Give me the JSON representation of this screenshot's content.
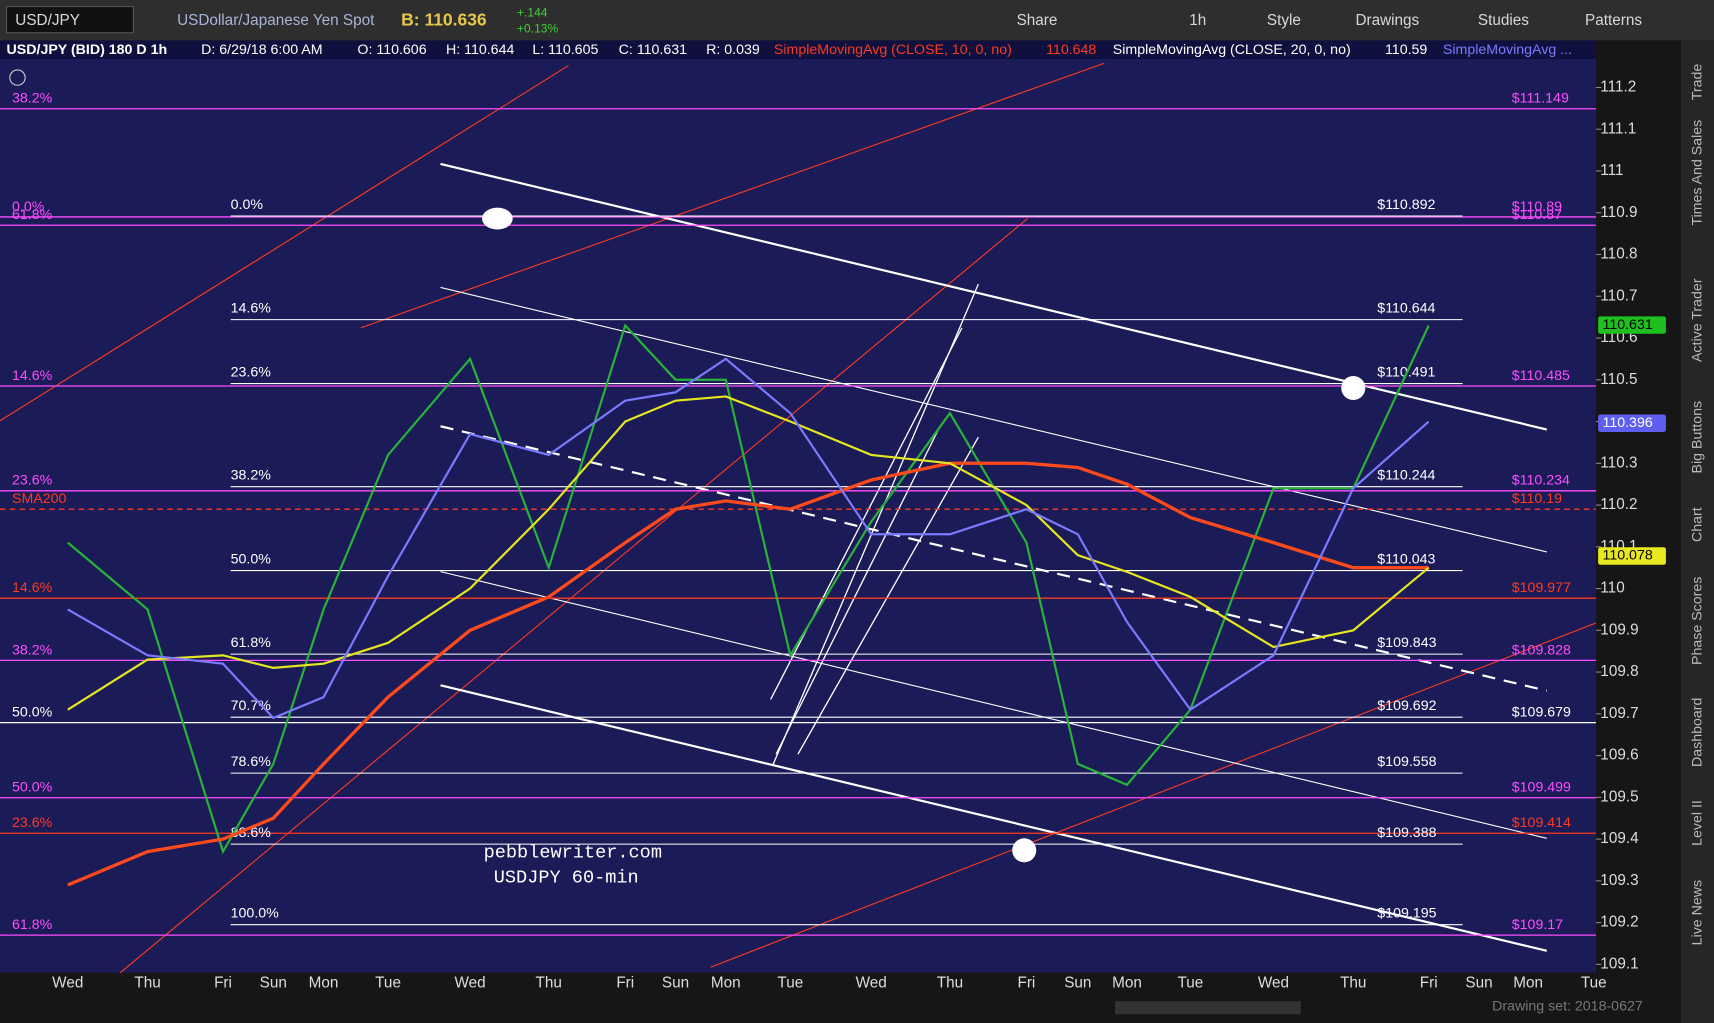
{
  "toolbar": {
    "symbol": "USD/JPY",
    "description": "USDollar/Japanese Yen Spot",
    "bid": "B: 110.636",
    "change": "+.144",
    "change_pct": "+0.13%",
    "buttons": [
      "Share",
      "1h",
      "Style",
      "Drawings",
      "Studies",
      "Patterns"
    ]
  },
  "header": {
    "study_title": "USD/JPY (BID) 180 D 1h",
    "date": "D: 6/29/18 6:00 AM",
    "open": "O: 110.606",
    "high": "H: 110.644",
    "low": "L: 110.605",
    "close": "C: 110.631",
    "range": "R: 0.039",
    "sma10": "SimpleMovingAvg (CLOSE, 10, 0, no)",
    "sma10_value": "110.648",
    "sma20": "SimpleMovingAvg (CLOSE, 20, 0, no)",
    "sma20_value": "110.59",
    "sma_more": "SimpleMovingAvg ..."
  },
  "side_tabs": [
    "Trade",
    "Times And Sales",
    "Active Trader",
    "Big Buttons",
    "Chart",
    "Phase Scores",
    "Dashboard",
    "Level II",
    "Live News"
  ],
  "chart_data": {
    "type": "line",
    "categories": [
      "Wed",
      "Thu",
      "Fri",
      "Sun",
      "Mon",
      "Tue",
      "Wed",
      "Thu",
      "Fri",
      "Sun",
      "Mon",
      "Tue",
      "Wed",
      "Thu",
      "Fri",
      "Sun",
      "Mon",
      "Tue",
      "Wed",
      "Thu",
      "Fri",
      "Sun",
      "Mon",
      "Tue"
    ],
    "series": [
      {
        "color": "#27b33a",
        "values": [
          110.11,
          109.95,
          109.37,
          109.58,
          109.95,
          110.32,
          110.55,
          110.05,
          110.63,
          110.5,
          110.5,
          109.84,
          110.16,
          110.42,
          110.11,
          109.58,
          109.53,
          109.71,
          110.24,
          110.24,
          110.63,
          null,
          null,
          null
        ]
      },
      {
        "color": "#ff4a1c",
        "values": [
          109.29,
          109.37,
          109.4,
          109.45,
          109.58,
          109.74,
          109.9,
          109.98,
          110.11,
          110.19,
          110.21,
          110.19,
          110.26,
          110.3,
          110.3,
          110.29,
          110.25,
          110.17,
          110.11,
          110.05,
          110.05,
          null,
          null,
          null
        ]
      },
      {
        "color": "#e6e620",
        "values": [
          109.71,
          109.83,
          109.84,
          109.81,
          109.82,
          109.87,
          110.0,
          110.19,
          110.4,
          110.45,
          110.46,
          110.4,
          110.32,
          110.3,
          110.2,
          110.08,
          110.04,
          109.98,
          109.86,
          109.9,
          110.05,
          null,
          null,
          null
        ]
      },
      {
        "color": "#7a7aff",
        "values": [
          109.95,
          109.84,
          109.82,
          109.69,
          109.74,
          110.03,
          110.37,
          110.32,
          110.45,
          110.47,
          110.55,
          110.42,
          110.13,
          110.13,
          110.19,
          110.13,
          109.92,
          109.71,
          109.84,
          110.24,
          110.4,
          null,
          null,
          null
        ]
      }
    ],
    "ylim": [
      109.08,
      111.31
    ],
    "yticks": [
      109.1,
      109.2,
      109.3,
      109.4,
      109.5,
      109.6,
      109.7,
      109.8,
      109.9,
      110,
      110.1,
      110.2,
      110.3,
      110.4,
      110.5,
      110.6,
      110.7,
      110.8,
      110.9,
      111,
      111.1,
      111.2
    ],
    "fib_levels": [
      {
        "label": "0.0%",
        "value": 110.892,
        "price_label": "$110.892"
      },
      {
        "label": "14.6%",
        "value": 110.644,
        "price_label": "$110.644"
      },
      {
        "label": "23.6%",
        "value": 110.491,
        "price_label": "$110.491"
      },
      {
        "label": "38.2%",
        "value": 110.244,
        "price_label": "$110.244"
      },
      {
        "label": "50.0%",
        "value": 110.043,
        "price_label": "$110.043"
      },
      {
        "label": "61.8%",
        "value": 109.843,
        "price_label": "$109.843"
      },
      {
        "label": "70.7%",
        "value": 109.692,
        "price_label": "$109.692"
      },
      {
        "label": "78.6%",
        "value": 109.558,
        "price_label": "$109.558"
      },
      {
        "label": "88.6%",
        "value": 109.388,
        "price_label": "$109.388"
      },
      {
        "label": "100.0%",
        "value": 109.195,
        "price_label": "$109.195"
      }
    ],
    "levels": [
      {
        "label": "38.2%",
        "value": 111.149,
        "price_label": "$111.149",
        "color": "#ff4dff"
      },
      {
        "label": "0.0%",
        "value": 110.89,
        "price_label": "$110.89",
        "color": "#ff4dff"
      },
      {
        "label": "61.8%",
        "value": 110.87,
        "price_label": "$110.87",
        "color": "#ff4dff"
      },
      {
        "label": "14.6%",
        "value": 110.485,
        "price_label": "$110.485",
        "color": "#ff4dff"
      },
      {
        "label": "23.6%",
        "value": 110.234,
        "price_label": "$110.234",
        "color": "#ff4dff"
      },
      {
        "label": "SMA200",
        "value": 110.19,
        "price_label": "$110.19",
        "color": "#ff3a20",
        "dashed": true
      },
      {
        "label": "14.6%",
        "value": 109.977,
        "price_label": "$109.977",
        "color": "#ff3a20"
      },
      {
        "label": "38.2%",
        "value": 109.828,
        "price_label": "$109.828",
        "color": "#ff4dff"
      },
      {
        "label": "50.0%",
        "value": 109.679,
        "price_label": "$109.679",
        "color": "#ffffff"
      },
      {
        "label": "50.0%",
        "value": 109.499,
        "price_label": "$109.499",
        "color": "#ff4dff"
      },
      {
        "label": "23.6%",
        "value": 109.414,
        "price_label": "$109.414",
        "color": "#ff3a20"
      },
      {
        "label": "61.8%",
        "value": 109.17,
        "price_label": "$109.17",
        "color": "#ff4dff"
      }
    ],
    "price_tags": [
      {
        "value": 110.631,
        "color": "#1fbf1f"
      },
      {
        "value": 110.396,
        "color": "#5f5fef"
      },
      {
        "value": 110.078,
        "color": "#e8e820"
      }
    ],
    "annotations": [
      "pebblewriter.com",
      "USDJPY 60-min"
    ]
  },
  "footer": {
    "drawing_set": "Drawing set: 2018-0627"
  }
}
